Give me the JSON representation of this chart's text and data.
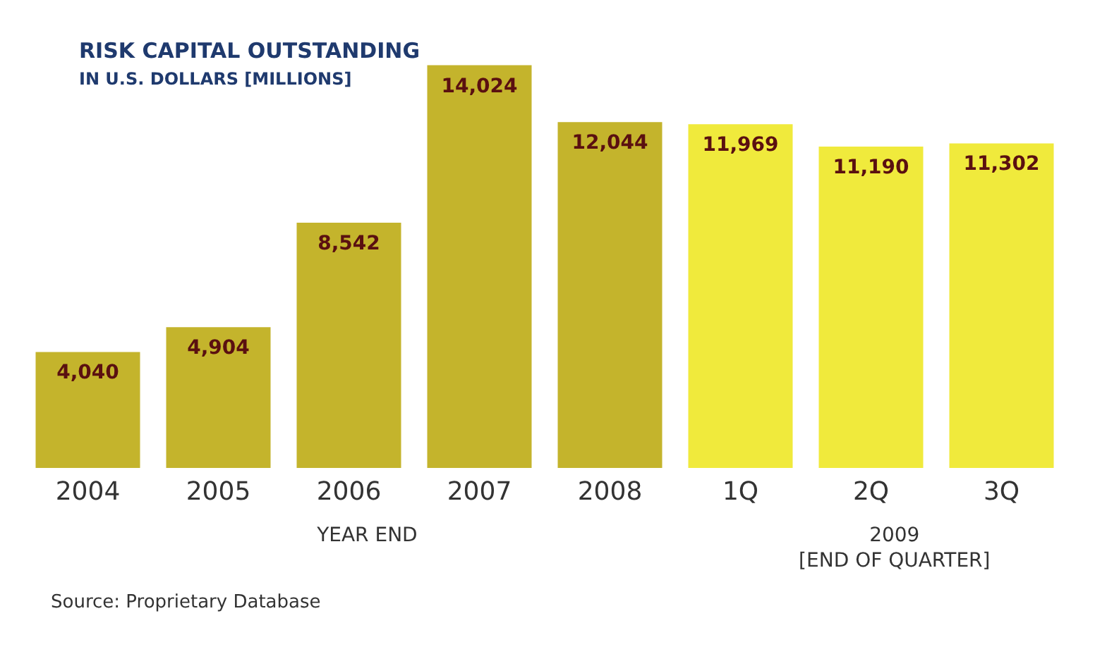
{
  "chart_data": {
    "type": "bar",
    "title": "RISK CAPITAL OUTSTANDING",
    "subtitle": "IN U.S. DOLLARS [MILLIONS]",
    "categories": [
      "2004",
      "2005",
      "2006",
      "2007",
      "2008",
      "1Q",
      "2Q",
      "3Q"
    ],
    "values": [
      4040,
      4904,
      8542,
      14024,
      12044,
      11969,
      11190,
      11302
    ],
    "colors": [
      "#c4b42c",
      "#c4b42c",
      "#c4b42c",
      "#c4b42c",
      "#c4b42c",
      "#f0ea3c",
      "#f0ea3c",
      "#f0ea3c"
    ],
    "value_labels": [
      "4,040",
      "4,904",
      "8,542",
      "14,024",
      "12,044",
      "11,969",
      "11,190",
      "11,302"
    ],
    "annotations": [
      "YEAR END",
      "2009",
      "[END OF QUARTER]",
      "Source: Proprietary Database"
    ]
  }
}
